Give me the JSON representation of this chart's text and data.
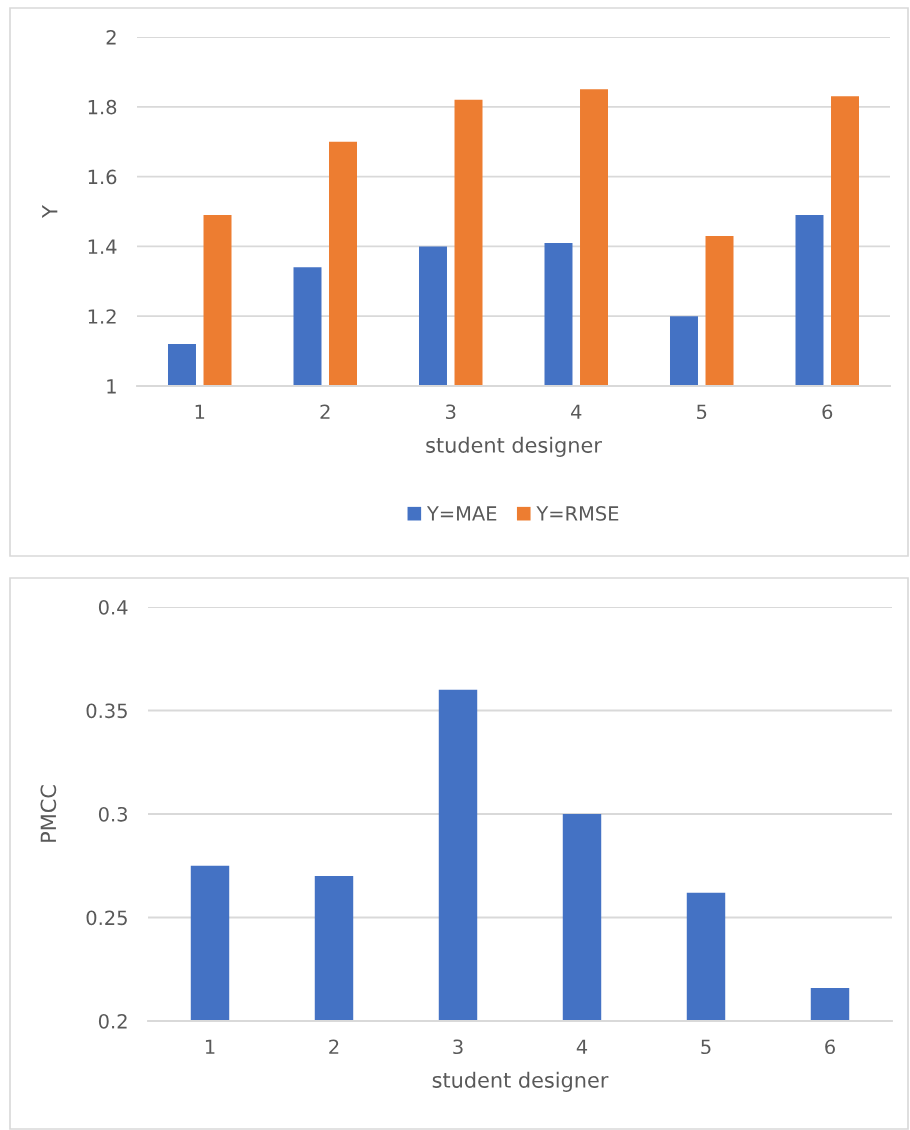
{
  "chart_data": [
    {
      "type": "bar",
      "categories": [
        "1",
        "2",
        "3",
        "4",
        "5",
        "6"
      ],
      "series": [
        {
          "name": "Y=MAE",
          "color": "#4472c4",
          "values": [
            1.12,
            1.34,
            1.4,
            1.41,
            1.2,
            1.49
          ]
        },
        {
          "name": "Y=RMSE",
          "color": "#ed7d31",
          "values": [
            1.49,
            1.7,
            1.82,
            1.85,
            1.43,
            1.83
          ]
        }
      ],
      "xlabel": "student designer",
      "ylabel": "Y",
      "ylim": [
        1,
        2
      ],
      "yticks": [
        1,
        1.2,
        1.4,
        1.6,
        1.8,
        2
      ],
      "grid": "y",
      "legend": "bottom"
    },
    {
      "type": "bar",
      "categories": [
        "1",
        "2",
        "3",
        "4",
        "5",
        "6"
      ],
      "series": [
        {
          "color": "#4472c4",
          "values": [
            0.275,
            0.27,
            0.36,
            0.3,
            0.262,
            0.216
          ]
        }
      ],
      "xlabel": "student designer",
      "ylabel": "PMCC",
      "ylim": [
        0.2,
        0.4
      ],
      "yticks": [
        0.2,
        0.25,
        0.3,
        0.35,
        0.4
      ],
      "grid": "y"
    }
  ]
}
